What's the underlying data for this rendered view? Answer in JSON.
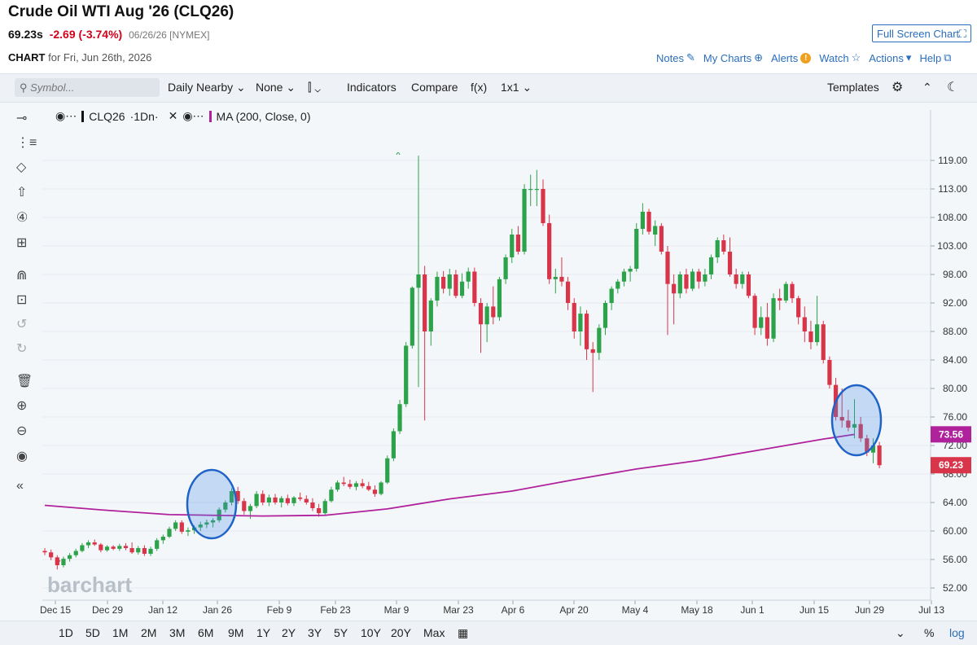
{
  "header": {
    "title": "Crude Oil WTI Aug '26 (CLQ26)",
    "last": "69.23s",
    "change": "-2.69 (-3.74%)",
    "date_exchange": "06/26/26 [NYMEX]",
    "fullscreen_label": "Full Screen Chart",
    "chart_label": "CHART",
    "chart_for": "for Fri, Jun 26th, 2026",
    "links": {
      "notes": "Notes",
      "mycharts": "My Charts",
      "alerts": "Alerts",
      "watch": "Watch",
      "actions": "Actions",
      "help": "Help"
    }
  },
  "toolbar": {
    "symbol_placeholder": "Symbol...",
    "daily": "Daily Nearby",
    "none": "None",
    "indicators": "Indicators",
    "compare": "Compare",
    "fx": "f(x)",
    "layout": "1x1",
    "templates": "Templates"
  },
  "legend": {
    "symbol": "CLQ26",
    "interval": "·1Dn·",
    "ma": "MA (200, Close, 0)"
  },
  "periods": [
    "1D",
    "5D",
    "1M",
    "2M",
    "3M",
    "6M",
    "9M",
    "1Y",
    "2Y",
    "3Y",
    "5Y",
    "10Y",
    "20Y",
    "Max"
  ],
  "bottom_right": {
    "pct": "%",
    "log": "log"
  },
  "watermark": "barchart",
  "colors": {
    "up": "#2ca24a",
    "down": "#d9354a",
    "ma": "#b0219c",
    "accent": "#2a6ebb"
  },
  "chart_data": {
    "type": "candlestick",
    "y_ticks": [
      52,
      56,
      60,
      64,
      68,
      72,
      76,
      80,
      84,
      88,
      92,
      98,
      103,
      108,
      113,
      119
    ],
    "x_ticks": [
      "Dec 15",
      "Dec 29",
      "Jan 12",
      "Jan 26",
      "Feb 9",
      "Feb 23",
      "Mar 9",
      "Mar 23",
      "Apr 6",
      "Apr 20",
      "May 4",
      "May 18",
      "Jun 1",
      "Jun 15",
      "Jun 29",
      "Jul 13"
    ],
    "price_labels": {
      "ma": "73.56",
      "last": "69.23"
    },
    "candles": [
      [
        57.2,
        57.6,
        56.6,
        57.0
      ],
      [
        57.0,
        57.4,
        55.9,
        56.3
      ],
      [
        56.3,
        56.6,
        54.6,
        55.2
      ],
      [
        55.2,
        56.4,
        54.9,
        56.1
      ],
      [
        56.1,
        56.9,
        55.7,
        56.6
      ],
      [
        56.6,
        57.5,
        56.3,
        57.2
      ],
      [
        57.2,
        58.3,
        57.0,
        58.0
      ],
      [
        58.0,
        58.7,
        57.6,
        58.4
      ],
      [
        58.4,
        58.8,
        57.9,
        58.1
      ],
      [
        58.1,
        58.3,
        57.0,
        57.3
      ],
      [
        57.3,
        58.0,
        57.1,
        57.8
      ],
      [
        57.8,
        58.0,
        57.3,
        57.5
      ],
      [
        57.5,
        58.2,
        57.2,
        57.9
      ],
      [
        57.9,
        58.3,
        57.3,
        57.6
      ],
      [
        57.6,
        58.4,
        56.8,
        57.0
      ],
      [
        57.0,
        57.9,
        56.7,
        57.6
      ],
      [
        57.6,
        58.0,
        56.5,
        56.8
      ],
      [
        56.8,
        57.8,
        56.5,
        57.5
      ],
      [
        57.5,
        59.0,
        57.2,
        58.7
      ],
      [
        58.7,
        59.5,
        58.2,
        59.2
      ],
      [
        59.2,
        60.6,
        59.0,
        60.3
      ],
      [
        60.3,
        61.5,
        60.0,
        61.2
      ],
      [
        61.2,
        61.5,
        59.6,
        59.9
      ],
      [
        59.9,
        60.5,
        59.3,
        60.1
      ],
      [
        60.1,
        60.8,
        59.6,
        60.5
      ],
      [
        60.5,
        61.3,
        60.0,
        60.9
      ],
      [
        60.9,
        61.6,
        60.4,
        61.2
      ],
      [
        61.2,
        61.8,
        60.5,
        61.5
      ],
      [
        61.5,
        63.3,
        61.2,
        63.0
      ],
      [
        63.0,
        64.3,
        62.6,
        64.0
      ],
      [
        64.0,
        66.0,
        63.6,
        65.6
      ],
      [
        65.6,
        66.2,
        63.8,
        64.2
      ],
      [
        64.2,
        64.6,
        62.3,
        62.8
      ],
      [
        62.8,
        63.8,
        61.7,
        63.5
      ],
      [
        63.5,
        65.6,
        63.2,
        65.2
      ],
      [
        65.2,
        65.7,
        63.6,
        64.0
      ],
      [
        64.0,
        65.1,
        63.5,
        64.7
      ],
      [
        64.7,
        65.2,
        63.7,
        64.0
      ],
      [
        64.0,
        64.9,
        63.3,
        64.6
      ],
      [
        64.6,
        65.1,
        63.6,
        63.9
      ],
      [
        63.9,
        64.9,
        63.5,
        64.7
      ],
      [
        64.7,
        65.4,
        64.2,
        64.5
      ],
      [
        64.5,
        65.0,
        63.7,
        64.0
      ],
      [
        64.0,
        64.6,
        62.8,
        63.2
      ],
      [
        63.2,
        63.8,
        62.0,
        62.5
      ],
      [
        62.5,
        64.5,
        62.3,
        64.2
      ],
      [
        64.2,
        66.2,
        64.0,
        65.8
      ],
      [
        65.8,
        67.1,
        65.5,
        66.8
      ],
      [
        66.8,
        67.6,
        66.3,
        66.6
      ],
      [
        66.6,
        67.2,
        65.9,
        66.2
      ],
      [
        66.2,
        67.0,
        65.7,
        66.7
      ],
      [
        66.7,
        67.3,
        66.0,
        66.3
      ],
      [
        66.3,
        66.9,
        65.6,
        65.8
      ],
      [
        65.8,
        66.4,
        64.8,
        65.2
      ],
      [
        65.2,
        67.0,
        65.0,
        66.8
      ],
      [
        66.8,
        70.6,
        66.6,
        70.2
      ],
      [
        70.2,
        74.4,
        69.8,
        74.0
      ],
      [
        74.0,
        78.4,
        73.6,
        77.8
      ],
      [
        77.8,
        86.5,
        77.4,
        86.0
      ],
      [
        86.0,
        95.5,
        85.6,
        95.2
      ],
      [
        95.2,
        120.0,
        80.2,
        98.0
      ],
      [
        98.0,
        99.5,
        75.5,
        88.0
      ],
      [
        88.0,
        93.0,
        86.0,
        92.5
      ],
      [
        92.5,
        98.5,
        91.5,
        97.5
      ],
      [
        97.5,
        98.6,
        94.0,
        95.0
      ],
      [
        95.0,
        99.0,
        93.5,
        98.0
      ],
      [
        98.0,
        98.8,
        93.0,
        93.5
      ],
      [
        93.5,
        98.2,
        93.0,
        96.5
      ],
      [
        96.5,
        99.2,
        95.0,
        98.5
      ],
      [
        98.5,
        99.2,
        91.5,
        92.0
      ],
      [
        92.0,
        93.0,
        85.0,
        89.0
      ],
      [
        89.0,
        92.0,
        86.5,
        91.5
      ],
      [
        91.5,
        95.5,
        89.0,
        90.0
      ],
      [
        90.0,
        97.5,
        89.5,
        97.0
      ],
      [
        97.0,
        101.5,
        96.0,
        101.0
      ],
      [
        101.0,
        106.0,
        100.0,
        105.0
      ],
      [
        105.0,
        106.5,
        101.5,
        102.0
      ],
      [
        102.0,
        114.0,
        101.5,
        113.0
      ],
      [
        113.0,
        116.0,
        110.0,
        113.0
      ],
      [
        113.0,
        117.0,
        110.0,
        113.0
      ],
      [
        113.0,
        115.0,
        106.5,
        107.0
      ],
      [
        107.0,
        108.5,
        96.0,
        97.0
      ],
      [
        97.0,
        99.0,
        94.0,
        97.5
      ],
      [
        97.5,
        101.0,
        95.5,
        96.5
      ],
      [
        96.5,
        97.5,
        91.0,
        92.0
      ],
      [
        92.0,
        93.0,
        87.0,
        88.0
      ],
      [
        88.0,
        91.5,
        86.0,
        90.5
      ],
      [
        90.5,
        91.0,
        84.0,
        85.5
      ],
      [
        85.5,
        86.5,
        79.5,
        85.0
      ],
      [
        85.0,
        89.0,
        84.0,
        88.5
      ],
      [
        88.5,
        92.5,
        87.5,
        92.0
      ],
      [
        92.0,
        95.5,
        91.0,
        95.0
      ],
      [
        95.0,
        97.0,
        94.0,
        96.5
      ],
      [
        96.5,
        99.0,
        95.5,
        98.5
      ],
      [
        98.5,
        99.5,
        96.5,
        99.0
      ],
      [
        99.0,
        107.0,
        98.5,
        106.0
      ],
      [
        106.0,
        110.5,
        105.0,
        109.0
      ],
      [
        109.0,
        109.5,
        105.0,
        105.5
      ],
      [
        105.0,
        107.5,
        103.0,
        106.5
      ],
      [
        106.5,
        107.0,
        101.5,
        102.0
      ],
      [
        102.0,
        103.0,
        87.5,
        96.0
      ],
      [
        96.0,
        98.0,
        89.0,
        94.0
      ],
      [
        94.0,
        98.5,
        93.0,
        98.0
      ],
      [
        98.0,
        99.0,
        94.0,
        95.0
      ],
      [
        95.0,
        99.0,
        94.5,
        98.5
      ],
      [
        98.5,
        99.0,
        95.0,
        96.5
      ],
      [
        96.5,
        99.0,
        95.5,
        98.0
      ],
      [
        98.0,
        101.5,
        97.0,
        101.0
      ],
      [
        101.0,
        104.5,
        100.0,
        104.0
      ],
      [
        104.0,
        105.0,
        101.5,
        102.0
      ],
      [
        102.0,
        104.5,
        97.5,
        98.0
      ],
      [
        98.0,
        99.0,
        95.0,
        96.0
      ],
      [
        96.0,
        98.5,
        95.0,
        98.0
      ],
      [
        98.0,
        98.5,
        93.0,
        93.5
      ],
      [
        93.5,
        94.0,
        87.5,
        88.5
      ],
      [
        88.5,
        91.5,
        87.5,
        90.0
      ],
      [
        90.0,
        92.0,
        86.0,
        87.0
      ],
      [
        87.0,
        94.0,
        86.5,
        93.0
      ],
      [
        93.0,
        95.0,
        91.0,
        92.5
      ],
      [
        92.5,
        96.5,
        92.0,
        96.0
      ],
      [
        96.0,
        96.5,
        92.0,
        93.0
      ],
      [
        93.0,
        93.5,
        89.0,
        90.0
      ],
      [
        90.0,
        91.5,
        86.5,
        88.0
      ],
      [
        88.0,
        89.5,
        85.5,
        86.5
      ],
      [
        86.5,
        93.5,
        86.0,
        89.0
      ],
      [
        89.0,
        89.5,
        83.5,
        84.0
      ],
      [
        84.0,
        84.5,
        80.0,
        80.5
      ],
      [
        80.5,
        81.5,
        75.5,
        76.0
      ],
      [
        76.0,
        80.0,
        74.5,
        75.5
      ],
      [
        75.5,
        77.0,
        74.0,
        74.5
      ],
      [
        74.5,
        78.5,
        73.0,
        75.0
      ],
      [
        75.0,
        76.0,
        72.5,
        73.0
      ],
      [
        73.0,
        73.5,
        70.5,
        71.0
      ],
      [
        71.0,
        73.0,
        69.5,
        72.0
      ],
      [
        72.0,
        72.5,
        68.8,
        69.23
      ]
    ],
    "ma": [
      [
        0,
        63.6
      ],
      [
        10,
        62.9
      ],
      [
        20,
        62.3
      ],
      [
        27,
        62.2
      ],
      [
        35,
        62.1
      ],
      [
        45,
        62.2
      ],
      [
        55,
        63.1
      ],
      [
        65,
        64.5
      ],
      [
        75,
        65.6
      ],
      [
        85,
        67.2
      ],
      [
        95,
        68.7
      ],
      [
        105,
        69.9
      ],
      [
        115,
        71.4
      ],
      [
        125,
        72.9
      ],
      [
        130,
        73.56
      ]
    ]
  }
}
